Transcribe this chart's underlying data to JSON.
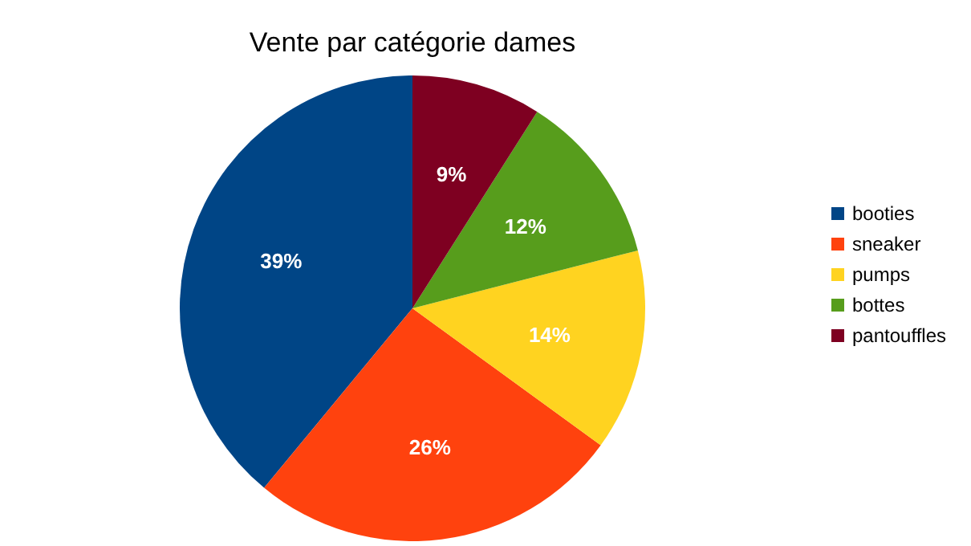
{
  "chart_data": {
    "type": "pie",
    "title": "Vente par catégorie dames",
    "categories": [
      "booties",
      "sneaker",
      "pumps",
      "bottes",
      "pantouffles"
    ],
    "values": [
      39,
      26,
      14,
      12,
      9
    ],
    "colors": [
      "#004586",
      "#ff420e",
      "#ffd320",
      "#579d1c",
      "#7e0021"
    ],
    "value_labels": [
      "39%",
      "26%",
      "14%",
      "12%",
      "9%"
    ],
    "legend": "right"
  }
}
